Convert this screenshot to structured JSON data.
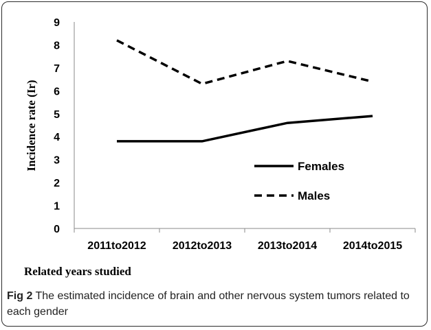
{
  "chart_data": {
    "type": "line",
    "categories": [
      "2011to2012",
      "2012to2013",
      "2013to2014",
      "2014to2015"
    ],
    "series": [
      {
        "name": "Females",
        "values": [
          3.8,
          3.8,
          4.6,
          4.9
        ],
        "style": "solid"
      },
      {
        "name": "Males",
        "values": [
          8.2,
          6.3,
          7.3,
          6.4
        ],
        "style": "dashed"
      }
    ],
    "xlabel": "Related years studied",
    "ylabel": "Incidence rate (Ir)",
    "ylim": [
      0,
      9
    ],
    "yticks": [
      0,
      1,
      2,
      3,
      4,
      5,
      6,
      7,
      8,
      9
    ],
    "grid": false,
    "legend_position": "right-center"
  },
  "caption": {
    "label": "Fig 2",
    "text": " The estimated incidence of brain and other nervous system tumors related to each gender"
  }
}
